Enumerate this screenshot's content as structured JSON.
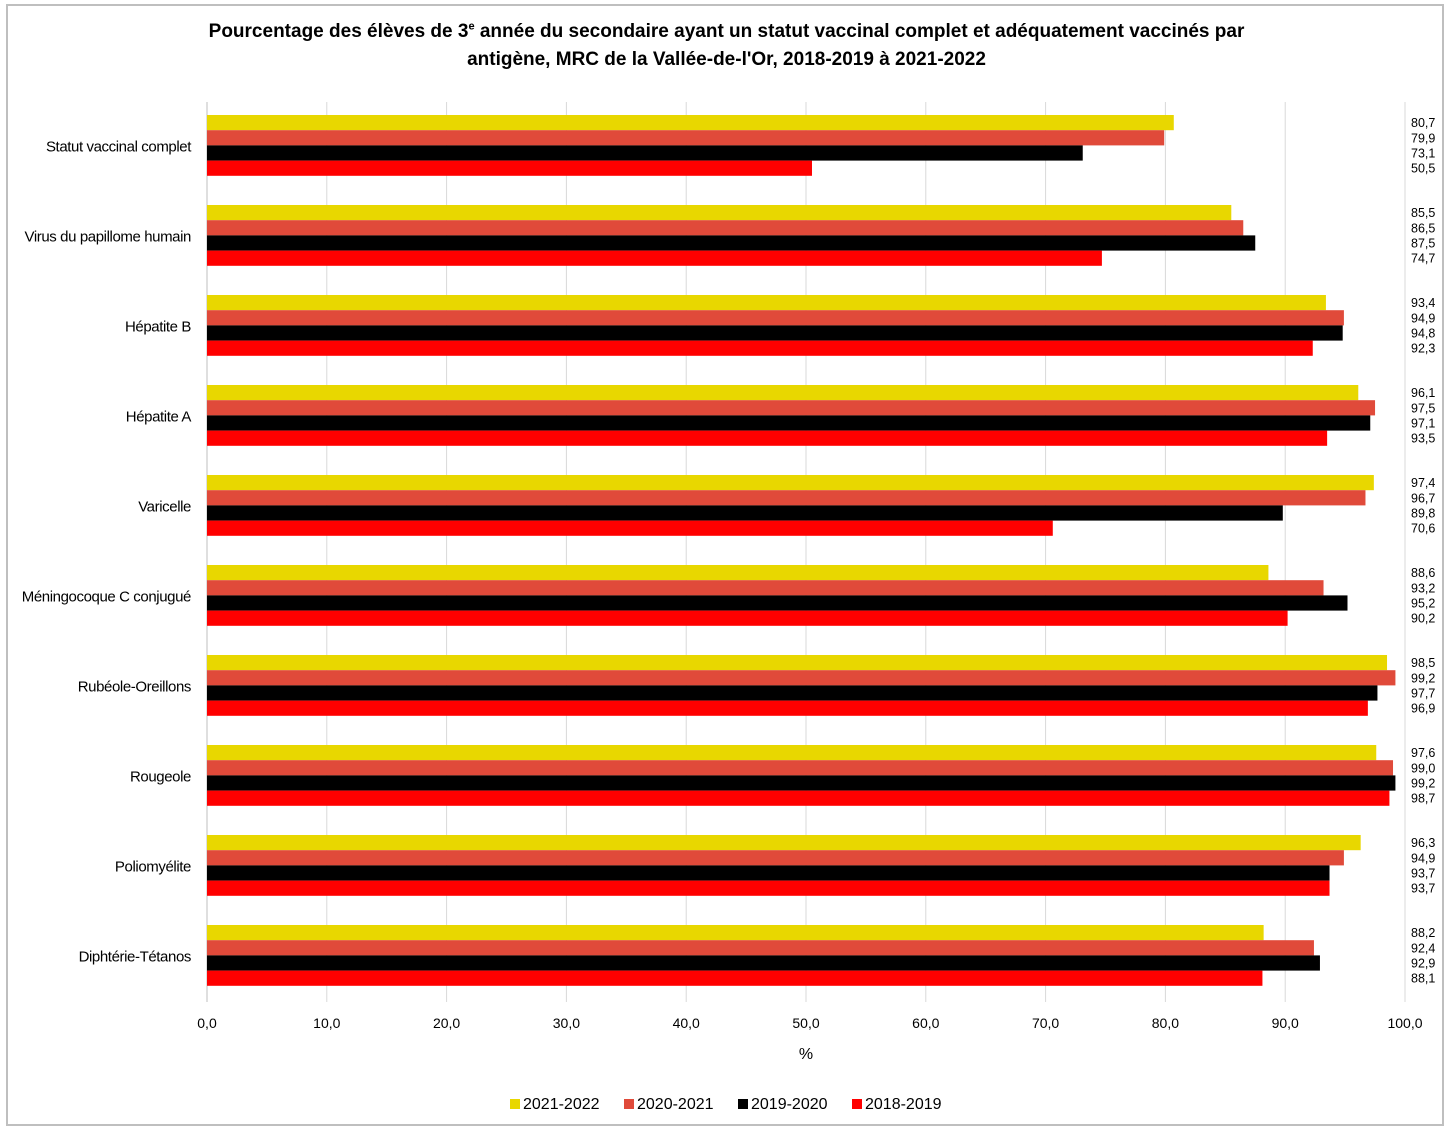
{
  "chart_data": {
    "type": "bar",
    "orientation": "horizontal",
    "title_line1": "Pourcentage des élèves de 3",
    "title_sup": "e",
    "title_line1_rest": " année du secondaire ayant un statut vaccinal complet et adéquatement vaccinés par",
    "title_line2": "antigène, MRC de la Vallée-de-l'Or, 2018-2019 à 2021-2022",
    "xlabel": "%",
    "ylabel": "",
    "xlim": [
      0,
      100
    ],
    "xticks": [
      "0,0",
      "10,0",
      "20,0",
      "30,0",
      "40,0",
      "50,0",
      "60,0",
      "70,0",
      "80,0",
      "90,0",
      "100,0"
    ],
    "grid": true,
    "legend_position": "bottom",
    "categories": [
      "Statut vaccinal complet",
      "Virus du papillome humain",
      "Hépatite B",
      "Hépatite A",
      "Varicelle",
      "Méningocoque C conjugué",
      "Rubéole-Oreillons",
      "Rougeole",
      "Poliomyélite",
      "Diphtérie-Tétanos"
    ],
    "series": [
      {
        "name": "2021-2022",
        "color": "#e8d700",
        "values": [
          80.7,
          85.5,
          93.4,
          96.1,
          97.4,
          88.6,
          98.5,
          97.6,
          96.3,
          88.2
        ],
        "labels": [
          "80,7",
          "85,5",
          "93,4",
          "96,1",
          "97,4",
          "88,6",
          "98,5",
          "97,6",
          "96,3",
          "88,2"
        ]
      },
      {
        "name": "2020-2021",
        "color": "#e04a3a",
        "values": [
          79.9,
          86.5,
          94.9,
          97.5,
          96.7,
          93.2,
          99.2,
          99.0,
          94.9,
          92.4
        ],
        "labels": [
          "79,9",
          "86,5",
          "94,9",
          "97,5",
          "96,7",
          "93,2",
          "99,2",
          "99,0",
          "94,9",
          "92,4"
        ]
      },
      {
        "name": "2019-2020",
        "color": "#000000",
        "values": [
          73.1,
          87.5,
          94.8,
          97.1,
          89.8,
          95.2,
          97.7,
          99.2,
          93.7,
          92.9
        ],
        "labels": [
          "73,1",
          "87,5",
          "94,8",
          "97,1",
          "89,8",
          "95,2",
          "97,7",
          "99,2",
          "93,7",
          "92,9"
        ]
      },
      {
        "name": "2018-2019",
        "color": "#ff0000",
        "values": [
          50.5,
          74.7,
          92.3,
          93.5,
          70.6,
          90.2,
          96.9,
          98.7,
          93.7,
          88.1
        ],
        "labels": [
          "50,5",
          "74,7",
          "92,3",
          "93,5",
          "70,6",
          "90,2",
          "96,9",
          "98,7",
          "93,7",
          "88,1"
        ]
      }
    ]
  }
}
